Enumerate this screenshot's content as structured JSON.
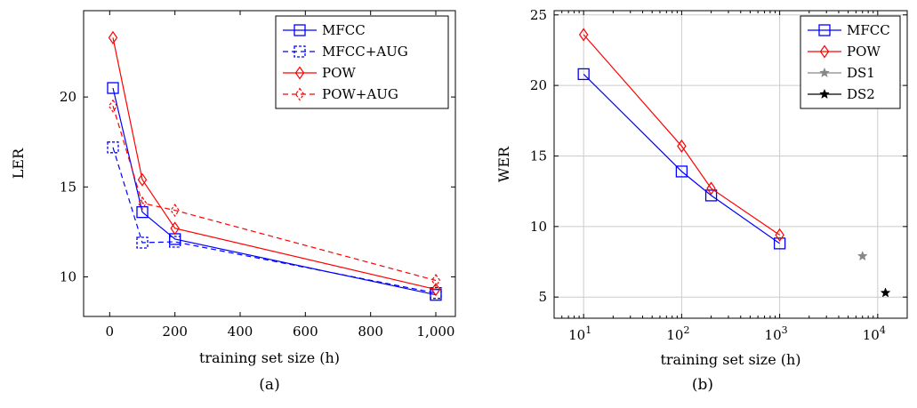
{
  "chart_data": [
    {
      "type": "line",
      "caption": "(a)",
      "xlabel": "training set size (h)",
      "ylabel": "LER",
      "xlim": [
        -80,
        1060
      ],
      "ylim": [
        7.8,
        24.8
      ],
      "x_ticks": [
        {
          "v": 0,
          "t": "0"
        },
        {
          "v": 200,
          "t": "200"
        },
        {
          "v": 400,
          "t": "400"
        },
        {
          "v": 600,
          "t": "600"
        },
        {
          "v": 800,
          "t": "800"
        },
        {
          "v": 1000,
          "t": "1,000"
        }
      ],
      "y_ticks": [
        {
          "v": 10,
          "t": "10"
        },
        {
          "v": 15,
          "t": "15"
        },
        {
          "v": 20,
          "t": "20"
        }
      ],
      "grid": false,
      "legend_position": "top-right",
      "series": [
        {
          "name": "MFCC",
          "color": "#0000ff",
          "dash": "solid",
          "marker": "square",
          "x": [
            10,
            100,
            200,
            1000
          ],
          "y": [
            20.5,
            13.6,
            12.1,
            9.0
          ]
        },
        {
          "name": "MFCC+AUG",
          "color": "#0000ff",
          "dash": "dashed",
          "marker": "square-dashed",
          "x": [
            10,
            100,
            200,
            1000
          ],
          "y": [
            17.2,
            11.9,
            11.95,
            9.1
          ]
        },
        {
          "name": "POW",
          "color": "#ff0000",
          "dash": "solid",
          "marker": "diamond",
          "x": [
            10,
            100,
            200,
            1000
          ],
          "y": [
            23.3,
            15.4,
            12.7,
            9.3
          ]
        },
        {
          "name": "POW+AUG",
          "color": "#ff0000",
          "dash": "dashed",
          "marker": "diamond-dashed",
          "x": [
            10,
            100,
            200,
            1000
          ],
          "y": [
            19.5,
            14.1,
            13.7,
            9.8
          ]
        }
      ]
    },
    {
      "type": "line",
      "caption": "(b)",
      "xlabel": "training set size (h)",
      "ylabel": "WER",
      "xscale": "log",
      "xlim": [
        5,
        20000
      ],
      "ylim": [
        3.5,
        25.3
      ],
      "x_ticks": [
        {
          "v": 10,
          "b": "10",
          "e": "1"
        },
        {
          "v": 100,
          "b": "10",
          "e": "2"
        },
        {
          "v": 1000,
          "b": "10",
          "e": "3"
        },
        {
          "v": 10000,
          "b": "10",
          "e": "4"
        }
      ],
      "y_ticks": [
        {
          "v": 5,
          "t": "5"
        },
        {
          "v": 10,
          "t": "10"
        },
        {
          "v": 15,
          "t": "15"
        },
        {
          "v": 20,
          "t": "20"
        },
        {
          "v": 25,
          "t": "25"
        }
      ],
      "grid": true,
      "legend_position": "top-right",
      "series": [
        {
          "name": "MFCC",
          "color": "#0000ff",
          "dash": "solid",
          "marker": "square",
          "x": [
            10,
            100,
            200,
            1000
          ],
          "y": [
            20.8,
            13.9,
            12.2,
            8.8
          ]
        },
        {
          "name": "POW",
          "color": "#ff0000",
          "dash": "solid",
          "marker": "diamond",
          "x": [
            10,
            100,
            200,
            1000
          ],
          "y": [
            23.6,
            15.7,
            12.7,
            9.4
          ]
        },
        {
          "name": "DS1",
          "color": "#888888",
          "dash": "none",
          "marker": "star",
          "x": [
            7000
          ],
          "y": [
            7.9
          ]
        },
        {
          "name": "DS2",
          "color": "#000000",
          "dash": "none",
          "marker": "star",
          "x": [
            12000
          ],
          "y": [
            5.3
          ]
        }
      ]
    }
  ]
}
